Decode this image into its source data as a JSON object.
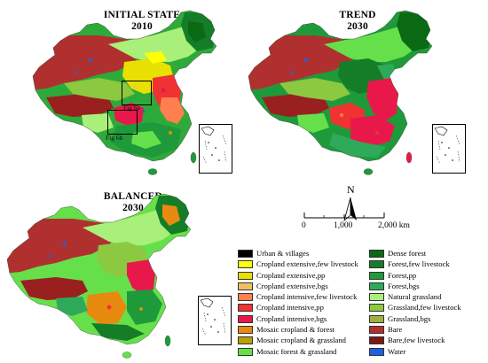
{
  "maps": {
    "initial": {
      "title_line1": "INITIAL STATE",
      "title_line2": "2010",
      "zoom_a": "Fig 6a",
      "zoom_b": "Fig 6b"
    },
    "trend": {
      "title_line1": "TREND",
      "title_line2": "2030"
    },
    "balanced": {
      "title_line1": "BALANCED",
      "title_line2": "2030"
    }
  },
  "north_arrow": {
    "label": "N"
  },
  "scale_bar": {
    "ticks": [
      "0",
      "1,000",
      "2,000 km"
    ]
  },
  "legend": {
    "left": [
      {
        "label": "Urban & villages",
        "color": "#000000"
      },
      {
        "label": "Cropland extensive,few livestock",
        "color": "#ffff00"
      },
      {
        "label": "Cropland extensive,pp",
        "color": "#e8e000"
      },
      {
        "label": "Cropland extensive,bgs",
        "color": "#f0c060"
      },
      {
        "label": "Cropland intensive,few livestock",
        "color": "#ff7f50"
      },
      {
        "label": "Cropland intensive,pp",
        "color": "#f03232"
      },
      {
        "label": "Cropland intensive,bgs",
        "color": "#e8194a"
      },
      {
        "label": "Mosaic cropland & forest",
        "color": "#e88a10"
      },
      {
        "label": "Mosaic cropland & grassland",
        "color": "#b8a000"
      },
      {
        "label": "Mosaic forest & grassland",
        "color": "#66e04a"
      }
    ],
    "right": [
      {
        "label": "Dense forest",
        "color": "#0a6a14"
      },
      {
        "label": "Forest,few livestock",
        "color": "#157d27"
      },
      {
        "label": "Forest,pp",
        "color": "#1f9a3a"
      },
      {
        "label": "Forest,bgs",
        "color": "#2eaa5a"
      },
      {
        "label": "Natural grassland",
        "color": "#a8f07a"
      },
      {
        "label": "Grassland,few livestock",
        "color": "#8cc840"
      },
      {
        "label": "Grassland,bgs",
        "color": "#a0b040"
      },
      {
        "label": "Bare",
        "color": "#b03030"
      },
      {
        "label": "Bare,few livestock",
        "color": "#7a1a10"
      },
      {
        "label": "Water",
        "color": "#2060e0"
      }
    ]
  }
}
